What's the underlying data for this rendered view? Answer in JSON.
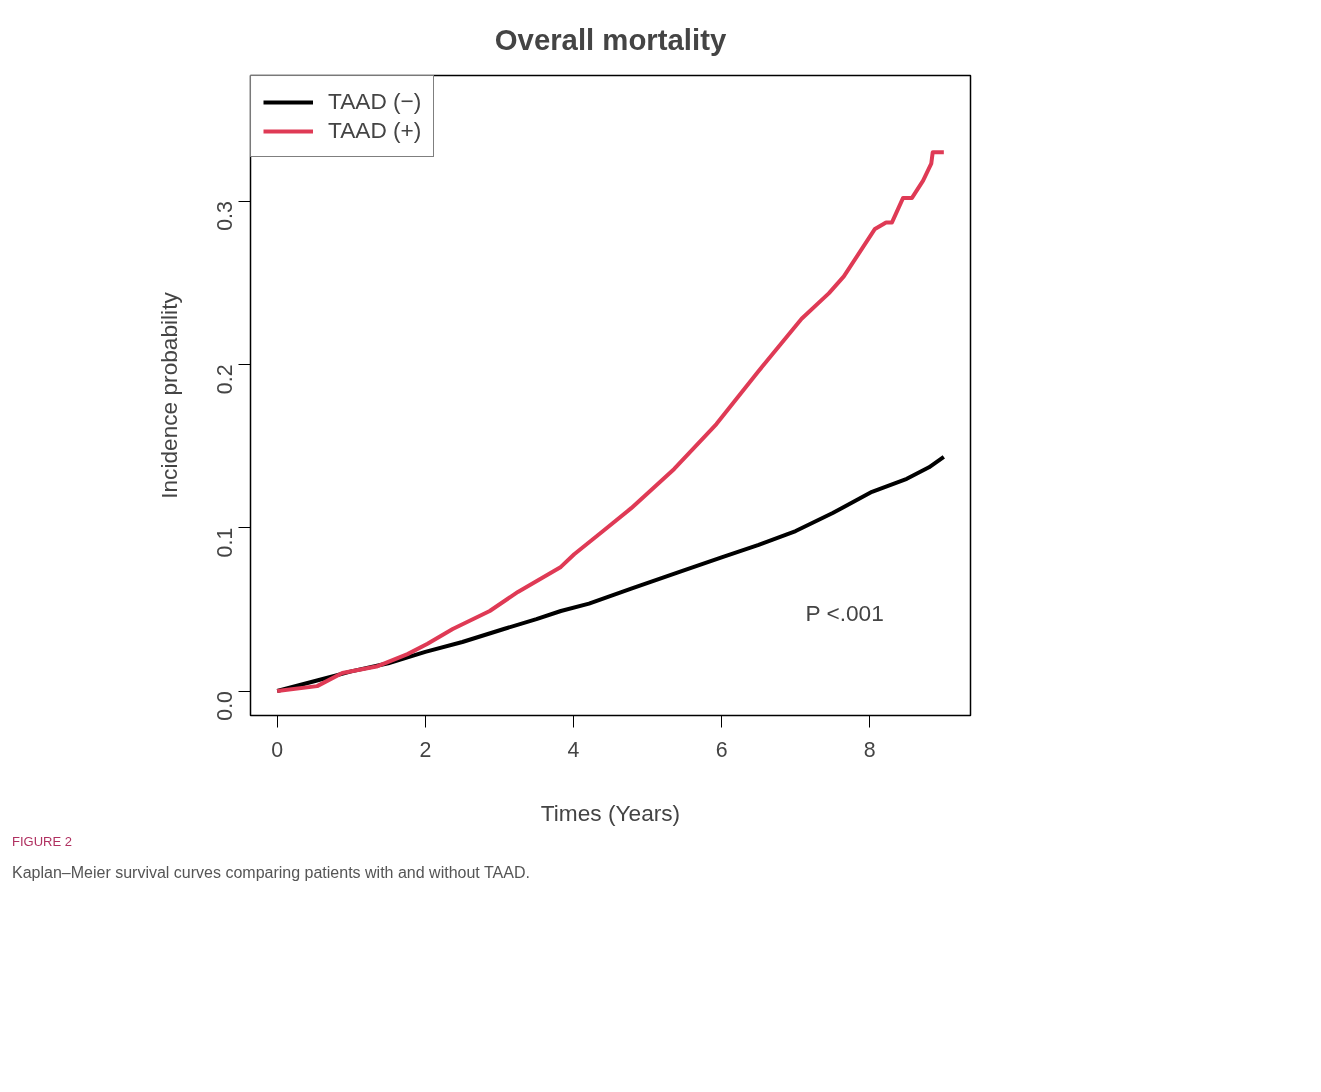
{
  "chart_data": {
    "type": "line",
    "title": "Overall mortality",
    "xlabel": "Times (Years)",
    "ylabel": "Incidence probability",
    "xlim": [
      -0.36,
      9.36
    ],
    "ylim": [
      -0.015,
      0.377
    ],
    "xticks": [
      0,
      2,
      4,
      6,
      8
    ],
    "yticks": [
      {
        "value": 0,
        "label": "0.0"
      },
      0.1,
      0.2,
      0.3
    ],
    "legend": "top left",
    "grid": false,
    "line_style": "solid",
    "annotations": [
      "P <.001",
      "FIGURE 2",
      "Kaplan–Meier survival curves comparing patients with and without TAAD."
    ],
    "series": [
      {
        "name": "TAAD (−)",
        "color": "#000000",
        "x": [
          0,
          0.5,
          1,
          1.5,
          2,
          2.5,
          3.06,
          3.5,
          3.83,
          4.21,
          4.78,
          5.5,
          6,
          6.5,
          7,
          7.5,
          8.03,
          8.5,
          8.8,
          9.0
        ],
        "values": [
          0,
          0.006,
          0.012,
          0.017,
          0.024,
          0.03,
          0.038,
          0.044,
          0.049,
          0.0535,
          0.0627,
          0.074,
          0.0818,
          0.0895,
          0.098,
          0.109,
          0.122,
          0.13,
          0.137,
          0.1434
        ]
      },
      {
        "name": "TAAD (+)",
        "color": "#df3a55",
        "x": [
          0,
          0.54,
          0.88,
          1.34,
          1.76,
          2.03,
          2.37,
          2.87,
          3.25,
          3.83,
          4.01,
          4.4,
          4.78,
          5.36,
          5.93,
          6.5,
          7.08,
          7.45,
          7.65,
          8.07,
          8.22,
          8.3,
          8.45,
          8.57,
          8.72,
          8.83,
          8.85,
          9.0
        ],
        "values": [
          0,
          0.003,
          0.011,
          0.015,
          0.0226,
          0.029,
          0.038,
          0.049,
          0.0607,
          0.076,
          0.0838,
          0.098,
          0.112,
          0.136,
          0.1635,
          0.196,
          0.228,
          0.2437,
          0.254,
          0.283,
          0.287,
          0.287,
          0.302,
          0.302,
          0.3126,
          0.323,
          0.33,
          0.33
        ]
      }
    ]
  }
}
